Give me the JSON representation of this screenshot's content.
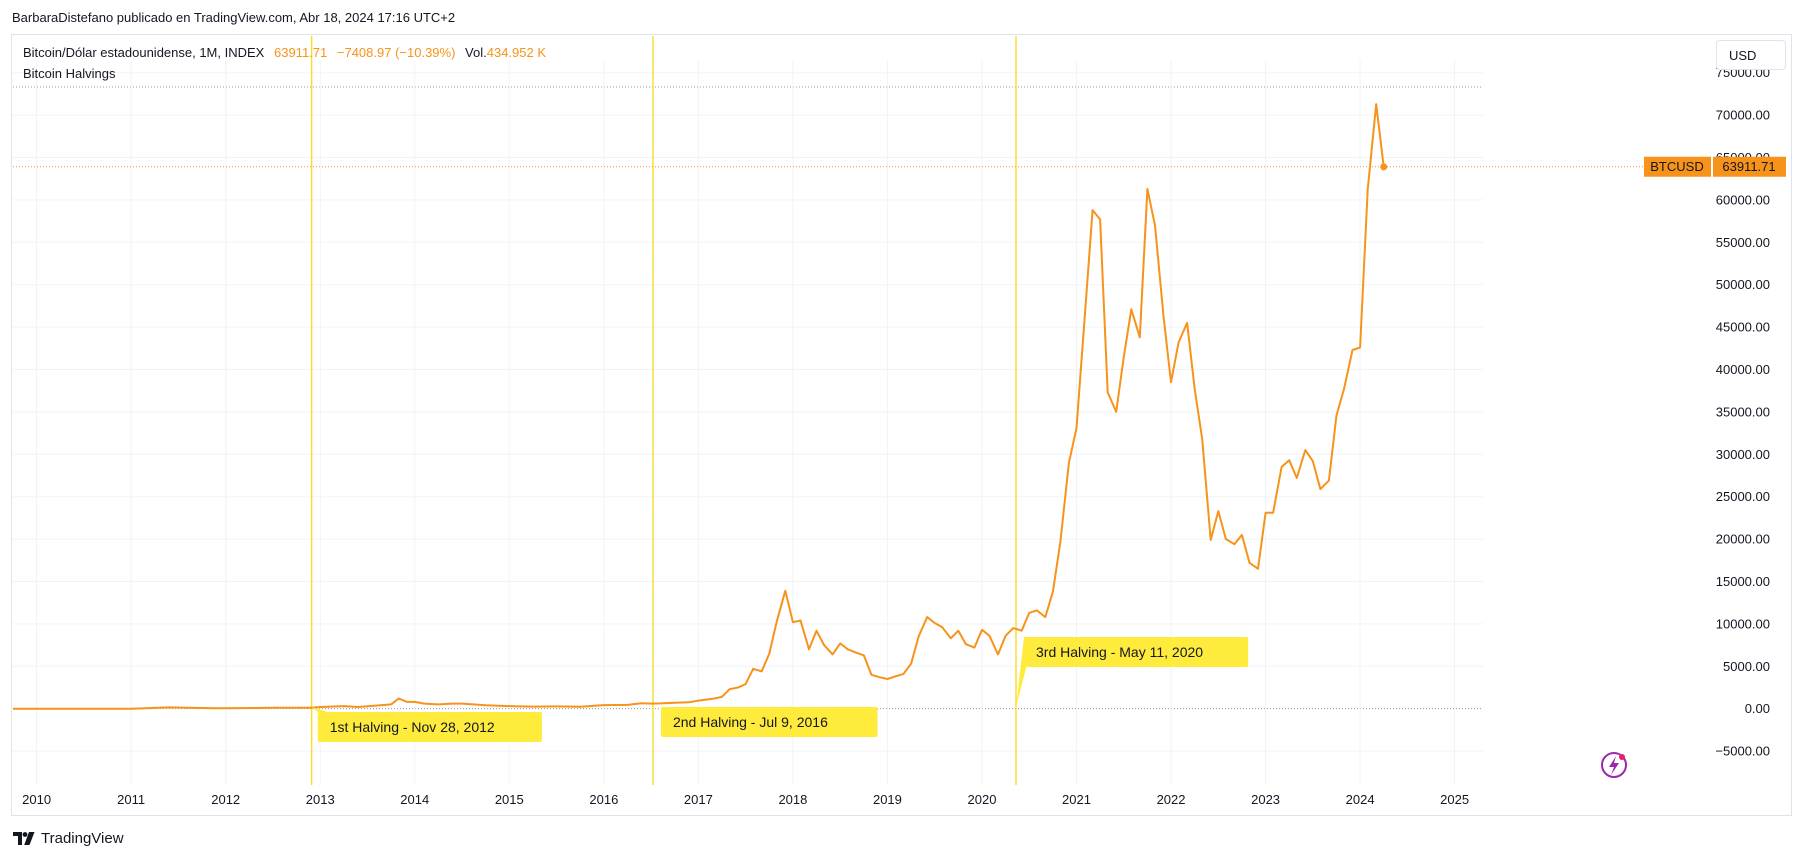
{
  "header": {
    "published": "BarbaraDistefano publicado en TradingView.com, Abr 18, 2024 17:16 UTC+2"
  },
  "legend": {
    "symbol": "Bitcoin/Dólar estadounidense, 1M, INDEX",
    "last": "63911.71",
    "change": "−7408.97 (−10.39%)",
    "vol_label": "Vol.",
    "vol_value": "434.952 K",
    "indicator": "Bitcoin Halvings"
  },
  "currency_button": "USD",
  "footer": {
    "brand": "TradingView"
  },
  "colors": {
    "line": "#f7931a",
    "halving_line": "#ffd600",
    "halving_label_bg": "#ffeb3b",
    "price_tag_bg": "#f7931a",
    "grid": "#f0f3fa"
  },
  "chart_data": {
    "type": "line",
    "title": "Bitcoin/Dólar estadounidense, 1M, INDEX",
    "symbol": "BTCUSD",
    "last_price": "63911.71",
    "y_ticks": [
      "75000.00",
      "70000.00",
      "65000.00",
      "60000.00",
      "55000.00",
      "50000.00",
      "45000.00",
      "40000.00",
      "35000.00",
      "30000.00",
      "25000.00",
      "20000.00",
      "15000.00",
      "10000.00",
      "5000.00",
      "0.00",
      "−5000.00"
    ],
    "x_ticks": [
      "2010",
      "2011",
      "2012",
      "2013",
      "2014",
      "2015",
      "2016",
      "2017",
      "2018",
      "2019",
      "2020",
      "2021",
      "2022",
      "2023",
      "2024",
      "2025"
    ],
    "ylim": [
      -9000,
      76500
    ],
    "xlim": [
      2009.75,
      2025.3
    ],
    "grid": true,
    "halvings": [
      {
        "x": 2012.91,
        "label": "1st Halving - Nov 28, 2012"
      },
      {
        "x": 2016.52,
        "label": "2nd Halving - Jul 9, 2016"
      },
      {
        "x": 2020.36,
        "label": "3rd Halving - May 11, 2020"
      }
    ],
    "series": [
      {
        "x": [
          2009.75,
          2010.5,
          2011.0,
          2011.4,
          2011.6,
          2011.9,
          2012.5,
          2012.9,
          2013.0,
          2013.25,
          2013.4,
          2013.75,
          2013.83,
          2013.92,
          2014.0,
          2014.1,
          2014.25,
          2014.4,
          2014.5,
          2014.75,
          2015.0,
          2015.25,
          2015.5,
          2015.75,
          2016.0,
          2016.25,
          2016.4,
          2016.5,
          2016.6,
          2016.75,
          2016.9,
          2017.0,
          2017.1,
          2017.17,
          2017.25,
          2017.33,
          2017.42,
          2017.5,
          2017.58,
          2017.67,
          2017.75,
          2017.83,
          2017.92,
          2018.0,
          2018.08,
          2018.17,
          2018.25,
          2018.33,
          2018.42,
          2018.5,
          2018.58,
          2018.67,
          2018.75,
          2018.83,
          2018.92,
          2019.0,
          2019.08,
          2019.17,
          2019.25,
          2019.33,
          2019.42,
          2019.5,
          2019.58,
          2019.67,
          2019.75,
          2019.83,
          2019.92,
          2020.0,
          2020.08,
          2020.17,
          2020.25,
          2020.33,
          2020.42,
          2020.5,
          2020.58,
          2020.67,
          2020.75,
          2020.83,
          2020.92,
          2021.0,
          2021.08,
          2021.17,
          2021.25,
          2021.33,
          2021.42,
          2021.5,
          2021.58,
          2021.67,
          2021.75,
          2021.83,
          2021.92,
          2022.0,
          2022.08,
          2022.17,
          2022.25,
          2022.33,
          2022.42,
          2022.5,
          2022.58,
          2022.67,
          2022.75,
          2022.83,
          2022.92,
          2023.0,
          2023.08,
          2023.17,
          2023.25,
          2023.33,
          2023.42,
          2023.5,
          2023.58,
          2023.67,
          2023.75,
          2023.83,
          2023.92,
          2024.0,
          2024.08,
          2024.17,
          2024.25
        ],
        "y": [
          0,
          0,
          0,
          150,
          100,
          50,
          100,
          120,
          200,
          300,
          200,
          500,
          1200,
          800,
          800,
          600,
          500,
          600,
          600,
          400,
          300,
          240,
          270,
          230,
          420,
          450,
          650,
          600,
          620,
          700,
          750,
          950,
          1100,
          1200,
          1400,
          2300,
          2500,
          2900,
          4700,
          4400,
          6500,
          10300,
          13900,
          10200,
          10400,
          7000,
          9200,
          7500,
          6400,
          7700,
          7000,
          6600,
          6300,
          4000,
          3700,
          3500,
          3800,
          4100,
          5300,
          8500,
          10800,
          10100,
          9600,
          8300,
          9200,
          7600,
          7200,
          9300,
          8600,
          6400,
          8600,
          9500,
          9200,
          11300,
          11600,
          10800,
          13800,
          19700,
          29000,
          33100,
          45200,
          58800,
          57700,
          37300,
          35000,
          41500,
          47100,
          43800,
          61300,
          57000,
          46300,
          38500,
          43200,
          45500,
          37700,
          31800,
          19900,
          23300,
          20000,
          19400,
          20500,
          17200,
          16500,
          23100,
          23100,
          28500,
          29300,
          27200,
          30500,
          29200,
          25900,
          26900,
          34600,
          37700,
          42300,
          42600,
          61200,
          71300,
          63900
        ]
      }
    ]
  }
}
